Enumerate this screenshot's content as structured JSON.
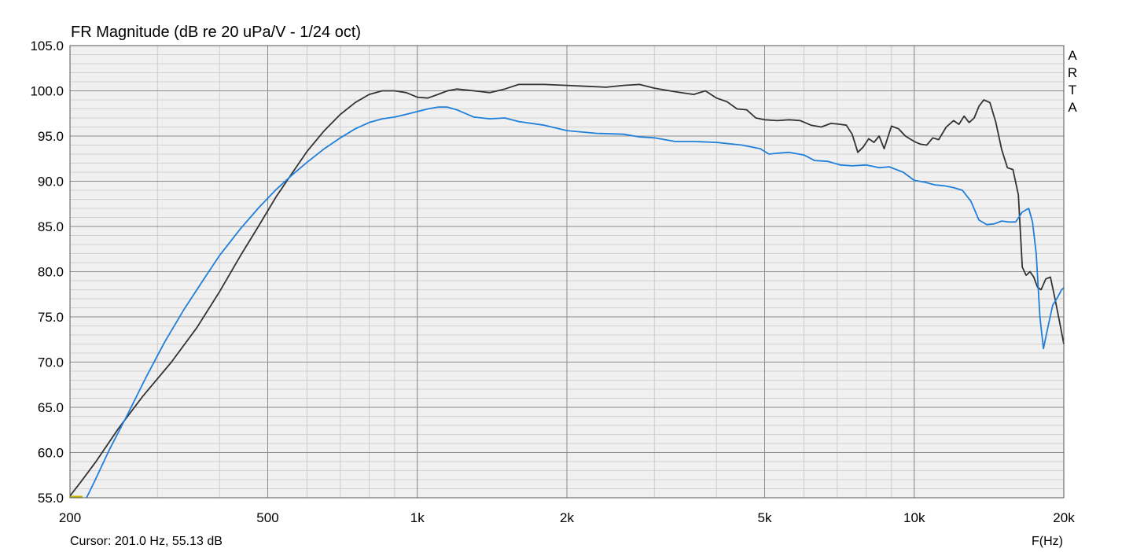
{
  "chart_data": {
    "type": "line",
    "title": "FR Magnitude (dB re 20 uPa/V - 1/24 oct)",
    "xlabel": "F(Hz)",
    "ylabel": "",
    "x_scale": "log",
    "xlim": [
      200,
      20000
    ],
    "ylim": [
      55,
      105
    ],
    "grid": true,
    "x_ticks": [
      {
        "value": 200,
        "label": "200"
      },
      {
        "value": 500,
        "label": "500"
      },
      {
        "value": 1000,
        "label": "1k"
      },
      {
        "value": 2000,
        "label": "2k"
      },
      {
        "value": 5000,
        "label": "5k"
      },
      {
        "value": 10000,
        "label": "10k"
      },
      {
        "value": 20000,
        "label": "20k"
      }
    ],
    "y_ticks": [
      {
        "value": 105,
        "label": "105.0"
      },
      {
        "value": 100,
        "label": "100.0"
      },
      {
        "value": 95,
        "label": "95.0"
      },
      {
        "value": 90,
        "label": "90.0"
      },
      {
        "value": 85,
        "label": "85.0"
      },
      {
        "value": 80,
        "label": "80.0"
      },
      {
        "value": 75,
        "label": "75.0"
      },
      {
        "value": 70,
        "label": "70.0"
      },
      {
        "value": 65,
        "label": "65.0"
      },
      {
        "value": 60,
        "label": "60.0"
      },
      {
        "value": 55,
        "label": "55.0"
      }
    ],
    "series": [
      {
        "color": "#333333",
        "x": [
          200,
          210,
          225,
          250,
          280,
          320,
          360,
          400,
          440,
          480,
          520,
          560,
          600,
          650,
          700,
          750,
          800,
          850,
          900,
          950,
          1000,
          1050,
          1100,
          1150,
          1200,
          1300,
          1400,
          1500,
          1600,
          1800,
          2000,
          2200,
          2400,
          2600,
          2800,
          3000,
          3300,
          3600,
          3800,
          4000,
          4200,
          4400,
          4600,
          4800,
          5000,
          5300,
          5600,
          5900,
          6200,
          6500,
          6800,
          7100,
          7300,
          7500,
          7700,
          7900,
          8100,
          8300,
          8500,
          8700,
          9000,
          9300,
          9600,
          10000,
          10300,
          10600,
          10900,
          11200,
          11600,
          12000,
          12300,
          12600,
          12900,
          13200,
          13500,
          13800,
          14200,
          14600,
          15000,
          15400,
          15800,
          16200,
          16500,
          16800,
          17100,
          17400,
          17700,
          18000,
          18400,
          18800,
          19200,
          19600,
          20000
        ],
        "y": [
          55.2,
          56.7,
          58.9,
          62.6,
          66.2,
          70.0,
          73.8,
          77.8,
          81.7,
          85.1,
          88.3,
          90.9,
          93.3,
          95.6,
          97.4,
          98.7,
          99.6,
          100.0,
          100.0,
          99.8,
          99.3,
          99.2,
          99.6,
          100.0,
          100.2,
          100.0,
          99.8,
          100.2,
          100.7,
          100.7,
          100.6,
          100.5,
          100.4,
          100.6,
          100.7,
          100.3,
          99.9,
          99.6,
          100.0,
          99.2,
          98.8,
          98.0,
          97.9,
          97.0,
          96.8,
          96.7,
          96.8,
          96.7,
          96.2,
          96.0,
          96.4,
          96.3,
          96.2,
          95.2,
          93.2,
          93.8,
          94.7,
          94.3,
          95.0,
          93.6,
          96.1,
          95.8,
          95.0,
          94.4,
          94.1,
          94.0,
          94.8,
          94.6,
          96.0,
          96.7,
          96.3,
          97.2,
          96.5,
          97.0,
          98.3,
          99.0,
          98.7,
          96.5,
          93.5,
          91.5,
          91.3,
          88.5,
          80.5,
          79.6,
          80.0,
          79.4,
          78.3,
          78.0,
          79.2,
          79.4,
          77.0,
          74.5,
          72.0
        ]
      },
      {
        "color": "#1f7fd9",
        "x": [
          216,
          225,
          240,
          260,
          285,
          310,
          340,
          370,
          400,
          440,
          480,
          520,
          560,
          600,
          650,
          700,
          750,
          800,
          850,
          900,
          950,
          1000,
          1050,
          1100,
          1150,
          1200,
          1300,
          1400,
          1500,
          1600,
          1800,
          2000,
          2300,
          2600,
          2800,
          3000,
          3300,
          3600,
          4000,
          4500,
          4900,
          5100,
          5300,
          5600,
          6000,
          6300,
          6700,
          7100,
          7500,
          8000,
          8500,
          8900,
          9500,
          10000,
          10500,
          11000,
          11500,
          12000,
          12500,
          13000,
          13500,
          14000,
          14500,
          15000,
          15500,
          16000,
          16500,
          17000,
          17300,
          17600,
          17900,
          18200,
          18600,
          19000,
          19400,
          19800,
          20000
        ],
        "y": [
          55.0,
          57.0,
          60.3,
          64.0,
          68.4,
          72.2,
          75.9,
          79.0,
          81.8,
          84.7,
          87.1,
          89.1,
          90.7,
          92.1,
          93.6,
          94.8,
          95.8,
          96.5,
          96.9,
          97.1,
          97.4,
          97.7,
          98.0,
          98.2,
          98.2,
          97.9,
          97.1,
          96.9,
          97.0,
          96.6,
          96.2,
          95.6,
          95.3,
          95.2,
          94.9,
          94.8,
          94.4,
          94.4,
          94.3,
          94.0,
          93.6,
          93.0,
          93.1,
          93.2,
          92.9,
          92.3,
          92.2,
          91.8,
          91.7,
          91.8,
          91.5,
          91.6,
          91.0,
          90.1,
          89.9,
          89.6,
          89.5,
          89.3,
          89.0,
          87.8,
          85.7,
          85.2,
          85.3,
          85.6,
          85.5,
          85.5,
          86.6,
          87.0,
          85.5,
          82.0,
          75.0,
          71.5,
          74.0,
          76.3,
          77.1,
          78.0,
          78.2
        ]
      }
    ],
    "marker": {
      "x": [
        200,
        212
      ],
      "y": [
        55.13,
        55.13
      ],
      "color": "#c8b400"
    }
  },
  "cursor_label": "Cursor: 201.0 Hz, 55.13 dB",
  "brand_letters": [
    "A",
    "R",
    "T",
    "A"
  ]
}
